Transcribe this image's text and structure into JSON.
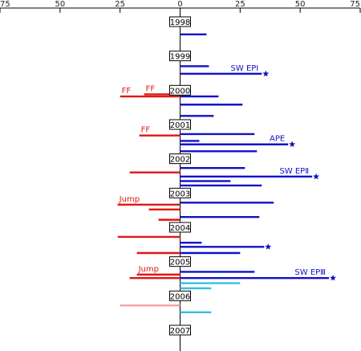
{
  "chart_data": {
    "type": "bar",
    "orientation": "horizontal-diverging",
    "xlim": [
      -75,
      75
    ],
    "x_ticks": [
      -75,
      -50,
      -25,
      0,
      25,
      50,
      75
    ],
    "x_tick_labels": [
      "75",
      "50",
      "25",
      "0",
      "25",
      "50",
      "75"
    ],
    "x_axis_position": "top",
    "ylim": [
      1998,
      2007
    ],
    "years": [
      "1998",
      "1999",
      "2000",
      "2001",
      "2002",
      "2003",
      "2004",
      "2005",
      "2006",
      "2007"
    ],
    "colors": {
      "positive": "#1010cc",
      "negative": "#e01515",
      "light_positive": "#30c0e0",
      "light_negative": "#f4a0a0",
      "star": "#1010cc",
      "annotation_red": "#e01515",
      "annotation_blue": "#1010cc"
    },
    "bars": [
      {
        "t": 1998.37,
        "v": 11,
        "color": "positive"
      },
      {
        "t": 1999.3,
        "v": 12,
        "color": "positive"
      },
      {
        "t": 1999.52,
        "v": 34,
        "color": "positive",
        "star": true,
        "label": "SW EPI"
      },
      {
        "t": 2000.18,
        "v": -25,
        "color": "negative",
        "label": "FF"
      },
      {
        "t": 2000.12,
        "v": -15,
        "color": "negative",
        "label": "FF"
      },
      {
        "t": 2000.18,
        "v": 16,
        "color": "positive"
      },
      {
        "t": 2000.42,
        "v": 26,
        "color": "positive"
      },
      {
        "t": 2000.75,
        "v": 14,
        "color": "positive"
      },
      {
        "t": 2001.32,
        "v": -17,
        "color": "negative",
        "label": "FF"
      },
      {
        "t": 2001.28,
        "v": 31,
        "color": "positive"
      },
      {
        "t": 2001.48,
        "v": 8,
        "color": "positive"
      },
      {
        "t": 2001.58,
        "v": 45,
        "color": "positive",
        "star": true,
        "label": "APE"
      },
      {
        "t": 2001.78,
        "v": 32,
        "color": "positive"
      },
      {
        "t": 2002.27,
        "v": 27,
        "color": "positive"
      },
      {
        "t": 2002.4,
        "v": -21,
        "color": "negative"
      },
      {
        "t": 2002.52,
        "v": 55,
        "color": "positive",
        "star": true,
        "label": "SW EPⅡ"
      },
      {
        "t": 2002.65,
        "v": 21,
        "color": "positive"
      },
      {
        "t": 2002.78,
        "v": 34,
        "color": "positive"
      },
      {
        "t": 2003.28,
        "v": 39,
        "color": "positive"
      },
      {
        "t": 2003.34,
        "v": -26,
        "color": "negative",
        "label": "Jump"
      },
      {
        "t": 2003.48,
        "v": -13,
        "color": "negative"
      },
      {
        "t": 2003.7,
        "v": 33,
        "color": "positive"
      },
      {
        "t": 2003.78,
        "v": -9,
        "color": "negative"
      },
      {
        "t": 2004.28,
        "v": -26,
        "color": "negative"
      },
      {
        "t": 2004.45,
        "v": 9,
        "color": "positive"
      },
      {
        "t": 2004.57,
        "v": 35,
        "color": "positive",
        "star": true
      },
      {
        "t": 2004.75,
        "v": -18,
        "color": "negative"
      },
      {
        "t": 2004.75,
        "v": 25,
        "color": "positive"
      },
      {
        "t": 2005.3,
        "v": 31,
        "color": "positive"
      },
      {
        "t": 2005.38,
        "v": -18,
        "color": "negative",
        "label": "Jump"
      },
      {
        "t": 2005.48,
        "v": -21,
        "color": "negative"
      },
      {
        "t": 2005.48,
        "v": 62,
        "color": "positive",
        "star": true,
        "label": "SW EPⅢ"
      },
      {
        "t": 2005.63,
        "v": 25,
        "color": "light_positive"
      },
      {
        "t": 2005.78,
        "v": 13,
        "color": "light_positive"
      },
      {
        "t": 2006.28,
        "v": -25,
        "color": "light_negative"
      },
      {
        "t": 2006.48,
        "v": 13,
        "color": "light_positive"
      }
    ]
  }
}
